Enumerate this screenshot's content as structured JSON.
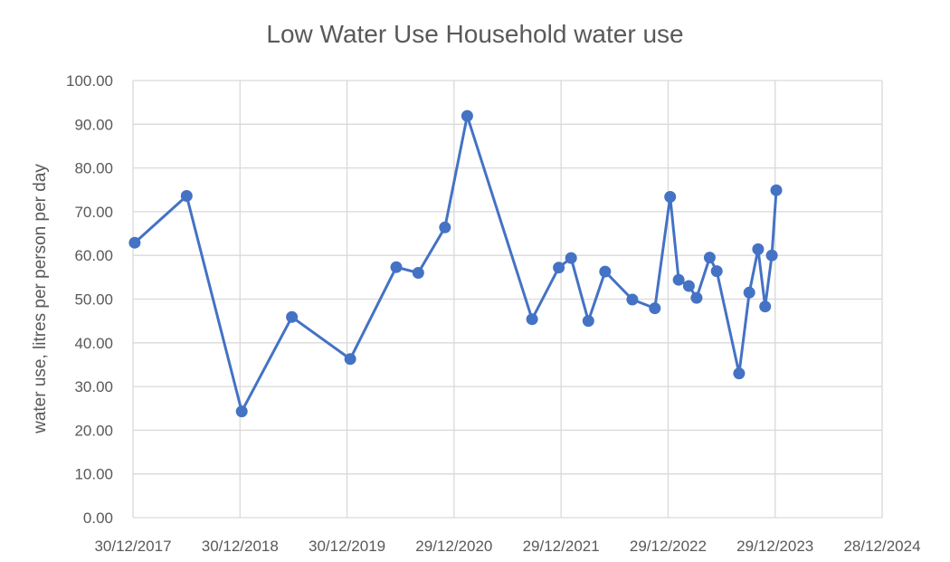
{
  "chart_data": {
    "type": "line",
    "title": "Low Water Use Household water use",
    "xlabel": "",
    "ylabel": "water use, litres per person per day",
    "ylim": [
      0,
      100
    ],
    "y_ticks": [
      "0.00",
      "10.00",
      "20.00",
      "30.00",
      "40.00",
      "50.00",
      "60.00",
      "70.00",
      "80.00",
      "90.00",
      "100.00"
    ],
    "x_ticks": [
      "30/12/2017",
      "30/12/2018",
      "30/12/2019",
      "29/12/2020",
      "29/12/2021",
      "29/12/2022",
      "29/12/2023",
      "28/12/2024"
    ],
    "xlim": [
      "2017-12-30",
      "2024-12-28"
    ],
    "grid": true,
    "legend": "none",
    "series": [
      {
        "color": "#4472c4",
        "points": [
          {
            "x": "2018-01-05",
            "y": 62.9
          },
          {
            "x": "2018-07-01",
            "y": 73.6
          },
          {
            "x": "2019-01-05",
            "y": 24.3
          },
          {
            "x": "2019-06-25",
            "y": 45.9
          },
          {
            "x": "2020-01-10",
            "y": 36.3
          },
          {
            "x": "2020-06-15",
            "y": 57.3
          },
          {
            "x": "2020-08-29",
            "y": 56.0
          },
          {
            "x": "2020-11-28",
            "y": 66.4
          },
          {
            "x": "2021-02-12",
            "y": 91.9
          },
          {
            "x": "2021-09-21",
            "y": 45.4
          },
          {
            "x": "2021-12-21",
            "y": 57.2
          },
          {
            "x": "2022-02-01",
            "y": 59.4
          },
          {
            "x": "2022-04-01",
            "y": 45.0
          },
          {
            "x": "2022-05-28",
            "y": 56.3
          },
          {
            "x": "2022-08-29",
            "y": 49.9
          },
          {
            "x": "2022-11-14",
            "y": 47.9
          },
          {
            "x": "2023-01-05",
            "y": 73.4
          },
          {
            "x": "2023-02-03",
            "y": 54.4
          },
          {
            "x": "2023-03-10",
            "y": 53.0
          },
          {
            "x": "2023-04-05",
            "y": 50.3
          },
          {
            "x": "2023-05-20",
            "y": 59.5
          },
          {
            "x": "2023-06-13",
            "y": 56.4
          },
          {
            "x": "2023-08-28",
            "y": 33.0
          },
          {
            "x": "2023-10-02",
            "y": 51.5
          },
          {
            "x": "2023-11-01",
            "y": 61.4
          },
          {
            "x": "2023-11-25",
            "y": 48.3
          },
          {
            "x": "2023-12-18",
            "y": 60.0
          },
          {
            "x": "2024-01-02",
            "y": 74.9
          }
        ]
      }
    ]
  }
}
